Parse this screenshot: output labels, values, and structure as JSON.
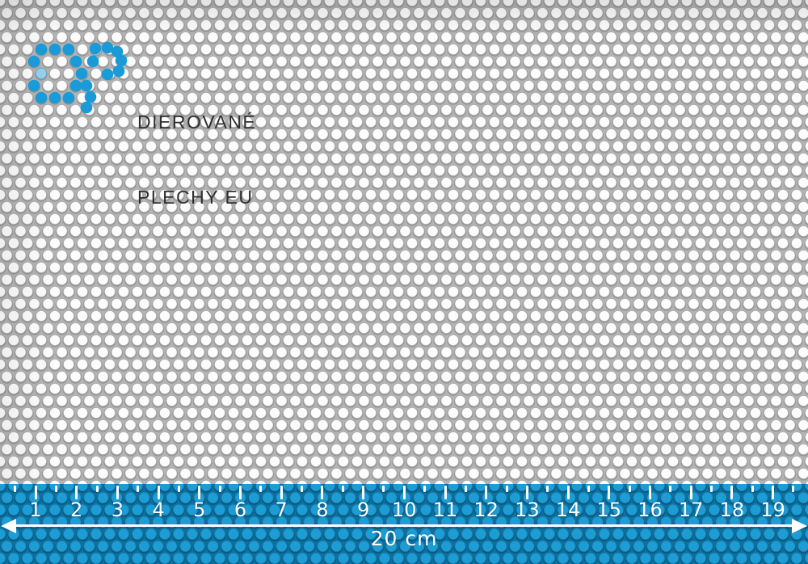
{
  "logo": {
    "line1": "DIEROVANÉ",
    "line2": "PLECHY EU",
    "accent_color": "#1a9bd7",
    "text_color": "#2f2f2f",
    "monogram": {
      "icon": "dp-dot-monogram",
      "dot_radius": 7.3,
      "d_dots": [
        [
          51,
          61
        ],
        [
          68,
          61
        ],
        [
          85,
          61
        ],
        [
          42,
          76
        ],
        [
          94,
          76
        ],
        [
          101,
          91
        ],
        [
          42,
          106
        ],
        [
          94,
          106
        ],
        [
          51,
          121
        ],
        [
          68,
          121
        ],
        [
          85,
          121
        ]
      ],
      "d_dots_faded": [
        [
          51,
          91
        ]
      ],
      "p_dots": [
        [
          118,
          60
        ],
        [
          133,
          59
        ],
        [
          145,
          64
        ],
        [
          150,
          75
        ],
        [
          147,
          88
        ],
        [
          133,
          92
        ],
        [
          115,
          76
        ],
        [
          107,
          106
        ],
        [
          112,
          120
        ],
        [
          107,
          133
        ]
      ]
    }
  },
  "sheet": {
    "hole_color": "#fcfcfc",
    "metal_color": "#b4b4b4",
    "rim_color": "#a2a2a2",
    "shadow_color": "rgba(30,30,30,0.25)"
  },
  "ruler": {
    "numbers": [
      "1",
      "2",
      "3",
      "4",
      "5",
      "6",
      "7",
      "8",
      "9",
      "10",
      "11",
      "12",
      "13",
      "14",
      "15",
      "16",
      "17",
      "18",
      "19"
    ],
    "total_label": "20 cm",
    "hole_color": "#1e9cd4",
    "rim_color": "#1080b2",
    "web_color": "#0f6f9d",
    "shadow_color": "rgba(2,40,66,0.5)",
    "tick_color": "#ffffff"
  }
}
